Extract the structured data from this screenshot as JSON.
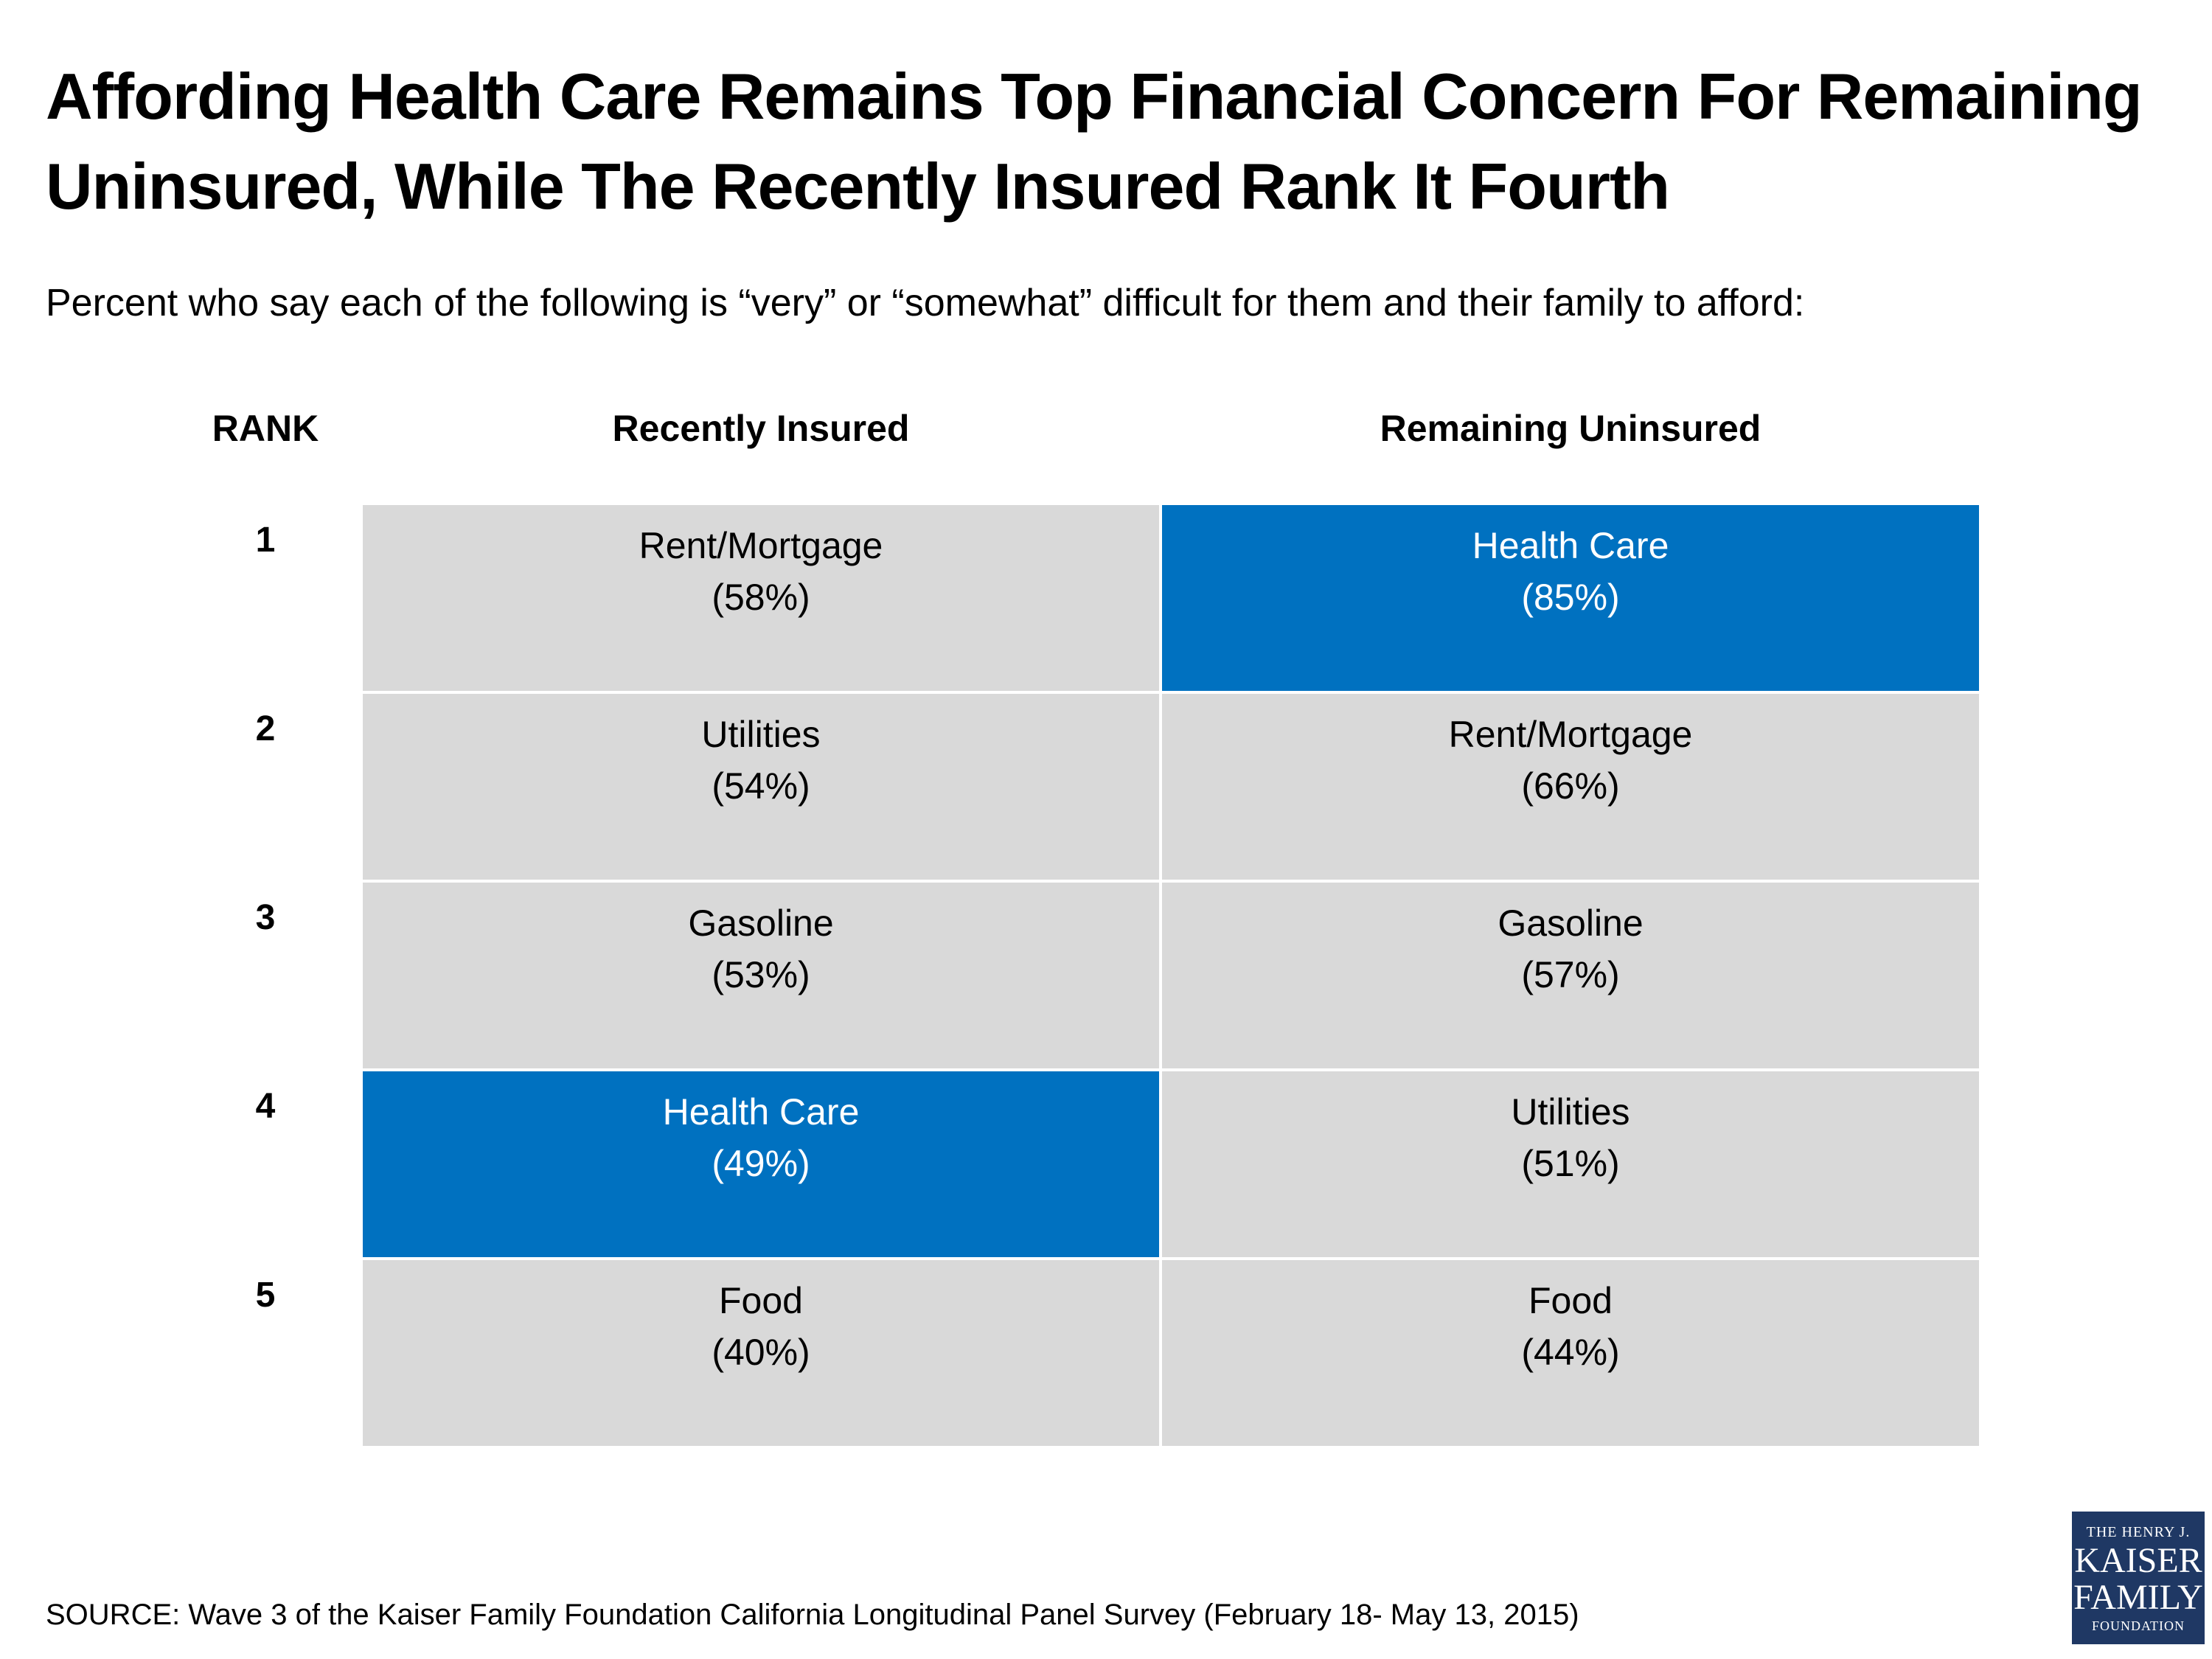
{
  "chart_data": {
    "type": "table",
    "title_lines": [
      "Affording Health Care Remains Top Financial Concern For Remaining",
      "Uninsured, While The Recently Insured Rank It Fourth"
    ],
    "subtitle": "Percent who say each of the following is “very” or “somewhat” difficult for them and their family to afford:",
    "columns": {
      "rank": "RANK",
      "recently_insured": "Recently Insured",
      "remaining_uninsured": "Remaining Uninsured"
    },
    "rows": [
      {
        "rank": "1",
        "recently_insured": {
          "item": "Rent/Mortgage",
          "pct_label": "(58%)",
          "value": 58,
          "highlight": false
        },
        "remaining_uninsured": {
          "item": "Health Care",
          "pct_label": "(85%)",
          "value": 85,
          "highlight": true
        }
      },
      {
        "rank": "2",
        "recently_insured": {
          "item": "Utilities",
          "pct_label": "(54%)",
          "value": 54,
          "highlight": false
        },
        "remaining_uninsured": {
          "item": "Rent/Mortgage",
          "pct_label": "(66%)",
          "value": 66,
          "highlight": false
        }
      },
      {
        "rank": "3",
        "recently_insured": {
          "item": "Gasoline",
          "pct_label": "(53%)",
          "value": 53,
          "highlight": false
        },
        "remaining_uninsured": {
          "item": "Gasoline",
          "pct_label": "(57%)",
          "value": 57,
          "highlight": false
        }
      },
      {
        "rank": "4",
        "recently_insured": {
          "item": "Health Care",
          "pct_label": "(49%)",
          "value": 49,
          "highlight": true
        },
        "remaining_uninsured": {
          "item": "Utilities",
          "pct_label": "(51%)",
          "value": 51,
          "highlight": false
        }
      },
      {
        "rank": "5",
        "recently_insured": {
          "item": "Food",
          "pct_label": "(40%)",
          "value": 40,
          "highlight": false
        },
        "remaining_uninsured": {
          "item": "Food",
          "pct_label": "(44%)",
          "value": 44,
          "highlight": false
        }
      }
    ],
    "colors": {
      "cell": "#d9d9d9",
      "highlight": "#0071c0",
      "highlight_text": "#ffffff"
    }
  },
  "source": "SOURCE: Wave 3 of the Kaiser Family Foundation California Longitudinal Panel Survey (February 18- May 13, 2015)",
  "logo": {
    "line1": "THE HENRY J.",
    "line2": "KAISER",
    "line3": "FAMILY",
    "line4": "FOUNDATION",
    "color": "#1f3864"
  }
}
